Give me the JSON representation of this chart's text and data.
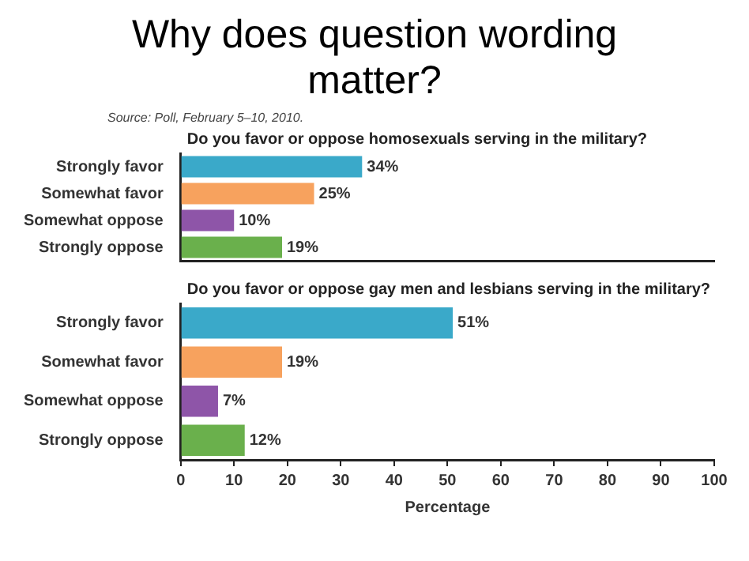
{
  "chart_data": [
    {
      "type": "bar",
      "orientation": "horizontal",
      "title": "Why does question wording matter?",
      "annotations": [
        "Source: Poll, February 5–10, 2010."
      ],
      "subtitle": "Do you favor or oppose homosexuals serving in the military?",
      "categories": [
        "Strongly favor",
        "Somewhat favor",
        "Somewhat oppose",
        "Strongly oppose"
      ],
      "values": [
        34,
        25,
        10,
        19
      ],
      "value_labels": [
        "34%",
        "25%",
        "10%",
        "19%"
      ],
      "colors": [
        "#3aa9c9",
        "#f7a25e",
        "#8e55a8",
        "#6ab04c"
      ],
      "xlim": [
        0,
        100
      ],
      "xticks": [
        0,
        10,
        20,
        30,
        40,
        50,
        60,
        70,
        80,
        90,
        100
      ],
      "tick_labels": "y",
      "grid": false
    },
    {
      "type": "bar",
      "orientation": "horizontal",
      "subtitle": "Do you favor or oppose gay men and lesbians serving in the military?",
      "xlabel": "Percentage",
      "categories": [
        "Strongly favor",
        "Somewhat favor",
        "Somewhat oppose",
        "Strongly oppose"
      ],
      "values": [
        51,
        19,
        7,
        12
      ],
      "value_labels": [
        "51%",
        "19%",
        "7%",
        "12%"
      ],
      "colors": [
        "#3aa9c9",
        "#f7a25e",
        "#8e55a8",
        "#6ab04c"
      ],
      "xlim": [
        0,
        100
      ],
      "xticks": [
        0,
        10,
        20,
        30,
        40,
        50,
        60,
        70,
        80,
        90,
        100
      ],
      "grid": false
    }
  ]
}
